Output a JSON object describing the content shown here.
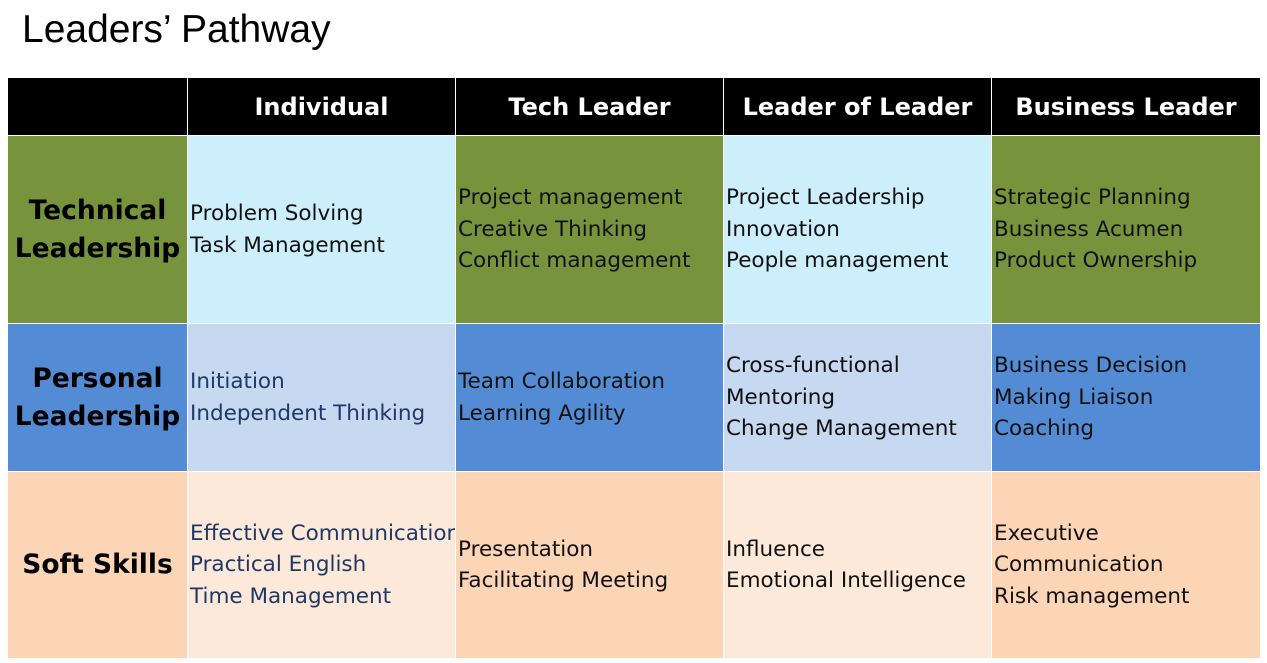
{
  "title": "Leaders’ Pathway",
  "columns": [
    "",
    "Individual",
    "Tech Leader",
    "Leader of Leader",
    "Business Leader"
  ],
  "rows": [
    {
      "label_lines": [
        "Technical",
        "Leadership"
      ],
      "cells": [
        [
          "Problem Solving",
          "Task Management"
        ],
        [
          "Project management",
          "Creative Thinking",
          "Conflict management"
        ],
        [
          "Project Leadership",
          "Innovation",
          "People management"
        ],
        [
          "Strategic Planning",
          "Business Acumen",
          "Product Ownership"
        ]
      ]
    },
    {
      "label_lines": [
        "Personal",
        "Leadership"
      ],
      "cells": [
        [
          "Initiation",
          "Independent Thinking"
        ],
        [
          "Team Collaboration",
          "Learning Agility"
        ],
        [
          "Cross-functional",
          "Mentoring",
          "Change Management"
        ],
        [
          "Business Decision",
          "Making Liaison",
          "Coaching"
        ]
      ]
    },
    {
      "label_lines": [
        "Soft Skills"
      ],
      "cells": [
        [
          "Effective Communication",
          "Practical English",
          "Time Management"
        ],
        [
          "Presentation",
          "Facilitating Meeting"
        ],
        [
          "Influence",
          "Emotional Intelligence"
        ],
        [
          "Executive",
          "Communication",
          "Risk management"
        ]
      ]
    }
  ],
  "colors": {
    "header_bg": "#000000",
    "technical_dark": "#77933c",
    "technical_light": "#cdeefb",
    "personal_dark": "#538cd5",
    "personal_light": "#c6d9f1",
    "soft_dark": "#fbd5b5",
    "soft_light": "#fde9d9",
    "individual_text": "#1f3864"
  }
}
